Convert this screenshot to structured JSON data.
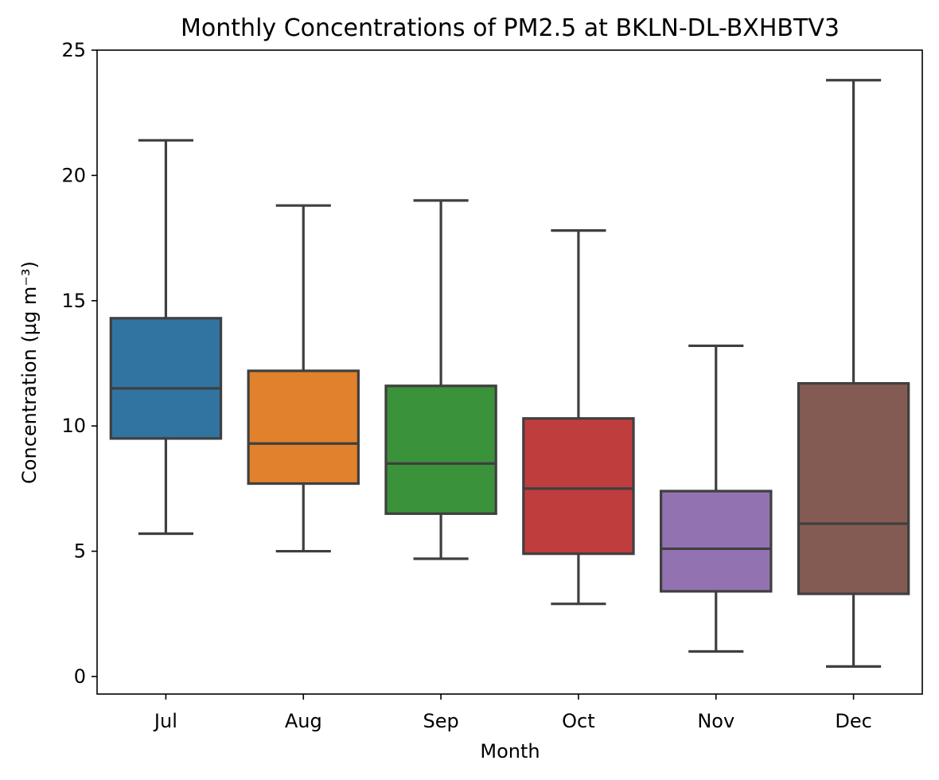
{
  "chart_data": {
    "type": "boxplot",
    "title": "Monthly Concentrations of PM2.5 at BKLN-DL-BXHBTV3",
    "xlabel": "Month",
    "ylabel": "Concentration (µg m⁻³)",
    "ylim": [
      -0.7,
      25
    ],
    "yticks": [
      0,
      5,
      10,
      15,
      20,
      25
    ],
    "grid": false,
    "categories": [
      "Jul",
      "Aug",
      "Sep",
      "Oct",
      "Nov",
      "Dec"
    ],
    "boxes": [
      {
        "category": "Jul",
        "whisker_low": 5.7,
        "q1": 9.5,
        "median": 11.5,
        "q3": 14.3,
        "whisker_high": 21.4,
        "color": "#3274a1"
      },
      {
        "category": "Aug",
        "whisker_low": 5.0,
        "q1": 7.7,
        "median": 9.3,
        "q3": 12.2,
        "whisker_high": 18.8,
        "color": "#e1812c"
      },
      {
        "category": "Sep",
        "whisker_low": 4.7,
        "q1": 6.5,
        "median": 8.5,
        "q3": 11.6,
        "whisker_high": 19.0,
        "color": "#3a923a"
      },
      {
        "category": "Oct",
        "whisker_low": 2.9,
        "q1": 4.9,
        "median": 7.5,
        "q3": 10.3,
        "whisker_high": 17.8,
        "color": "#c03d3e"
      },
      {
        "category": "Nov",
        "whisker_low": 1.0,
        "q1": 3.4,
        "median": 5.1,
        "q3": 7.4,
        "whisker_high": 13.2,
        "color": "#9372b2"
      },
      {
        "category": "Dec",
        "whisker_low": 0.4,
        "q1": 3.3,
        "median": 6.1,
        "q3": 11.7,
        "whisker_high": 23.8,
        "color": "#845b53"
      }
    ]
  }
}
